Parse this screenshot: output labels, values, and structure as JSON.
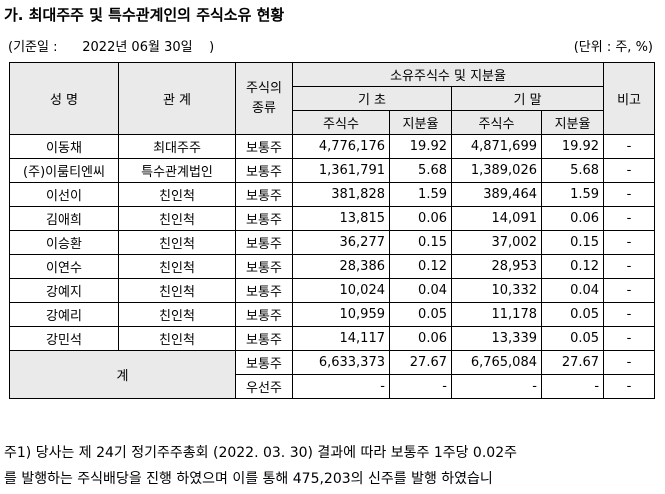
{
  "title": "가. 최대주주 및 특수관계인의 주식소유 현황",
  "basis": "(기준일 :      2022년 06월 30일    )",
  "unit": "(단위 : 주, %)",
  "headers": {
    "name": "성 명",
    "relation": "관 계",
    "stock_type": "주식의 종류",
    "holdings": "소유주식수 및 지분율",
    "begin": "기 초",
    "end": "기 말",
    "shares": "주식수",
    "ratio": "지분율",
    "remarks": "비고"
  },
  "rows": [
    {
      "name": "이동채",
      "relation": "최대주주",
      "type": "보통주",
      "begin_shares": "4,776,176",
      "begin_ratio": "19.92",
      "end_shares": "4,871,699",
      "end_ratio": "19.92",
      "remarks": "-"
    },
    {
      "name": "(주)이룸티엔씨",
      "relation": "특수관계법인",
      "type": "보통주",
      "begin_shares": "1,361,791",
      "begin_ratio": "5.68",
      "end_shares": "1,389,026",
      "end_ratio": "5.68",
      "remarks": "-"
    },
    {
      "name": "이선이",
      "relation": "친인척",
      "type": "보통주",
      "begin_shares": "381,828",
      "begin_ratio": "1.59",
      "end_shares": "389,464",
      "end_ratio": "1.59",
      "remarks": "-"
    },
    {
      "name": "김애희",
      "relation": "친인척",
      "type": "보통주",
      "begin_shares": "13,815",
      "begin_ratio": "0.06",
      "end_shares": "14,091",
      "end_ratio": "0.06",
      "remarks": "-"
    },
    {
      "name": "이승환",
      "relation": "친인척",
      "type": "보통주",
      "begin_shares": "36,277",
      "begin_ratio": "0.15",
      "end_shares": "37,002",
      "end_ratio": "0.15",
      "remarks": "-"
    },
    {
      "name": "이연수",
      "relation": "친인척",
      "type": "보통주",
      "begin_shares": "28,386",
      "begin_ratio": "0.12",
      "end_shares": "28,953",
      "end_ratio": "0.12",
      "remarks": "-"
    },
    {
      "name": "강예지",
      "relation": "친인척",
      "type": "보통주",
      "begin_shares": "10,024",
      "begin_ratio": "0.04",
      "end_shares": "10,332",
      "end_ratio": "0.04",
      "remarks": "-"
    },
    {
      "name": "강예리",
      "relation": "친인척",
      "type": "보통주",
      "begin_shares": "10,959",
      "begin_ratio": "0.05",
      "end_shares": "11,178",
      "end_ratio": "0.05",
      "remarks": "-"
    },
    {
      "name": "강민석",
      "relation": "친인척",
      "type": "보통주",
      "begin_shares": "14,117",
      "begin_ratio": "0.06",
      "end_shares": "13,339",
      "end_ratio": "0.05",
      "remarks": "-"
    }
  ],
  "total": {
    "label": "계",
    "common": {
      "type": "보통주",
      "begin_shares": "6,633,373",
      "begin_ratio": "27.67",
      "end_shares": "6,765,084",
      "end_ratio": "27.67",
      "remarks": "-"
    },
    "preferred": {
      "type": "우선주",
      "begin_shares": "-",
      "begin_ratio": "-",
      "end_shares": "-",
      "end_ratio": "-",
      "remarks": "-"
    }
  },
  "notes": [
    "주1) 당사는 제 24기 정기주주총회 (2022. 03. 30) 결과에 따라 보통주 1주당 0.02주",
    "를 발행하는 주식배당을 진행 하였으며 이를 통해 475,203의 신주를 발행 하였습니"
  ]
}
